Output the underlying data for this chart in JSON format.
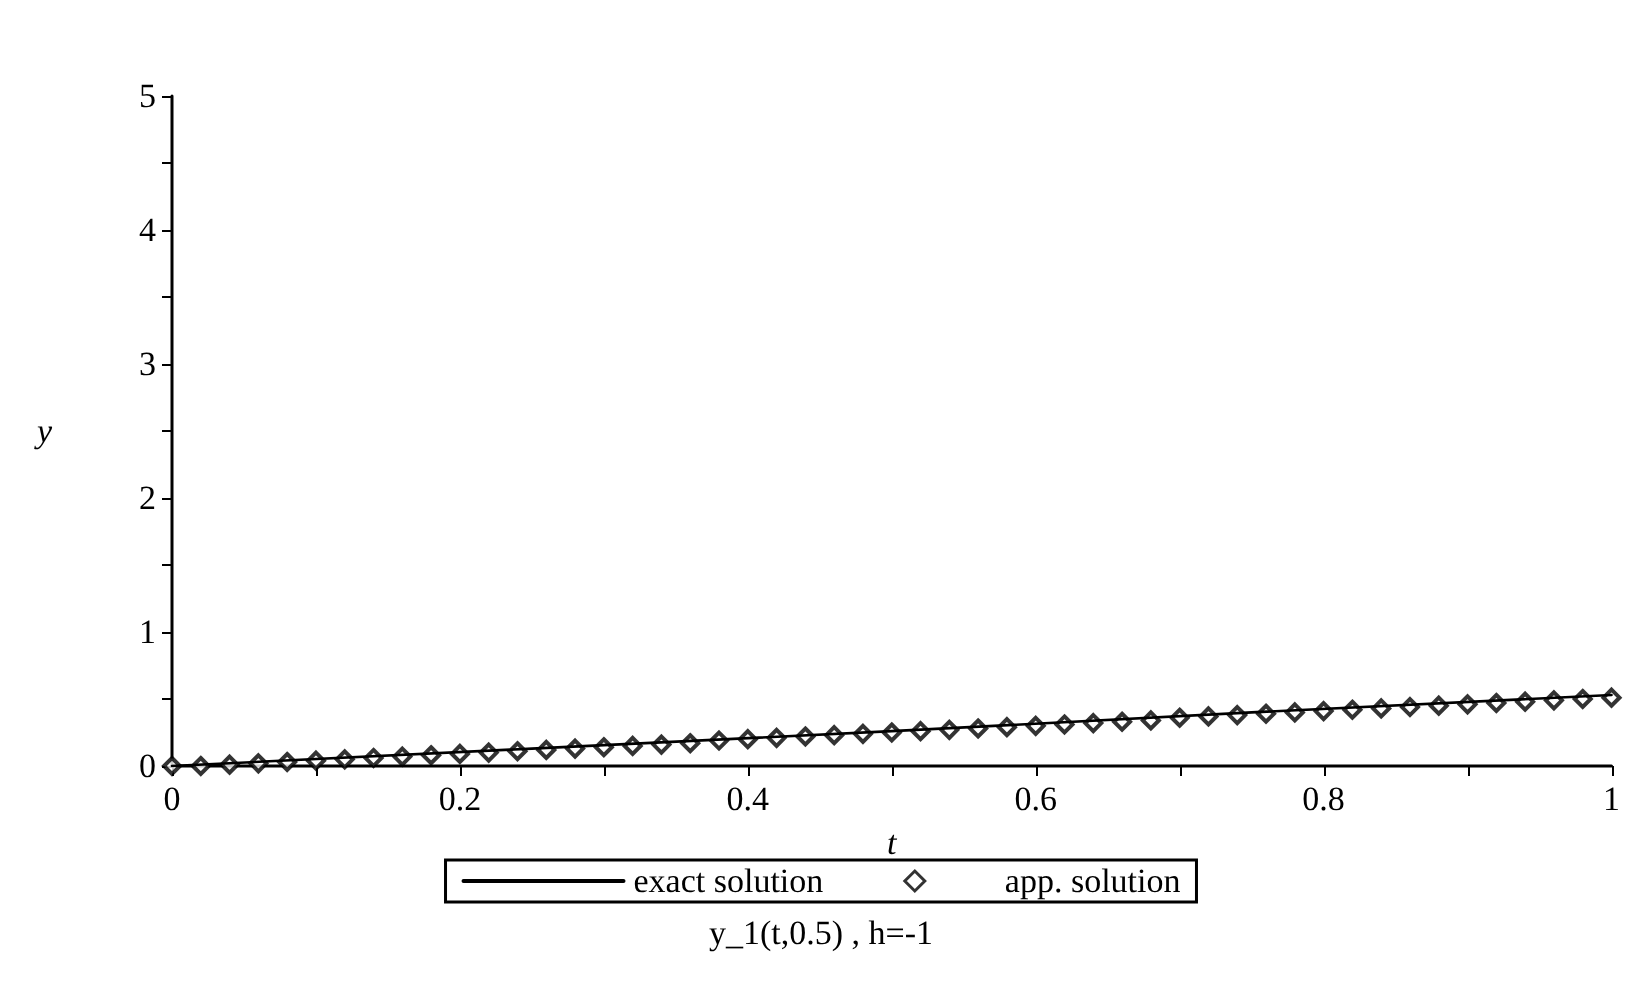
{
  "chart_data": {
    "type": "line",
    "xlabel": "t",
    "ylabel": "y",
    "xlim": [
      0,
      1
    ],
    "ylim": [
      0,
      5
    ],
    "xticks": [
      0,
      {
        "value": 0.1,
        "label": null
      },
      0.2,
      {
        "value": 0.3,
        "label": null
      },
      0.4,
      {
        "value": 0.5,
        "label": null
      },
      0.6,
      {
        "value": 0.7,
        "label": null
      },
      0.8,
      {
        "value": 0.9,
        "label": null
      },
      1
    ],
    "yticks": [
      0,
      {
        "value": 0.5,
        "label": null
      },
      1,
      {
        "value": 1.5,
        "label": null
      },
      2,
      {
        "value": 2.5,
        "label": null
      },
      3,
      {
        "value": 3.5,
        "label": null
      },
      4,
      {
        "value": 4.5,
        "label": null
      },
      5
    ],
    "grid": false,
    "legend": "bottom",
    "series": [
      {
        "name": "exact solution",
        "color": "#000000",
        "marker": "none",
        "line_style": "solid",
        "x": [
          0,
          0.25,
          0.5,
          0.75,
          1
        ],
        "values": [
          0,
          0.13,
          0.26,
          0.4,
          0.53
        ]
      },
      {
        "name": "app. solution",
        "type": "scatter",
        "color": "#000000",
        "marker": "diamond",
        "x": [
          0,
          0.02,
          0.04,
          0.06,
          0.08,
          0.1,
          0.12,
          0.14,
          0.16,
          0.18,
          0.2,
          0.22,
          0.24,
          0.26,
          0.28,
          0.3,
          0.32,
          0.34,
          0.36,
          0.38,
          0.4,
          0.42,
          0.44,
          0.46,
          0.48,
          0.5,
          0.52,
          0.54,
          0.56,
          0.58,
          0.6,
          0.62,
          0.64,
          0.66,
          0.68,
          0.7,
          0.72,
          0.74,
          0.76,
          0.78,
          0.8,
          0.82,
          0.84,
          0.86,
          0.88,
          0.9,
          0.92,
          0.94,
          0.96,
          0.98,
          1
        ],
        "values": [
          0,
          0,
          0.01,
          0.02,
          0.03,
          0.04,
          0.05,
          0.06,
          0.07,
          0.08,
          0.09,
          0.1,
          0.11,
          0.12,
          0.13,
          0.14,
          0.15,
          0.16,
          0.17,
          0.19,
          0.2,
          0.21,
          0.22,
          0.23,
          0.24,
          0.25,
          0.26,
          0.27,
          0.28,
          0.29,
          0.3,
          0.31,
          0.32,
          0.33,
          0.34,
          0.36,
          0.37,
          0.38,
          0.39,
          0.4,
          0.41,
          0.42,
          0.43,
          0.44,
          0.45,
          0.46,
          0.47,
          0.48,
          0.49,
          0.5,
          0.51
        ]
      }
    ],
    "annotations": [
      "y_1(t,0.5) , h=-1"
    ]
  }
}
